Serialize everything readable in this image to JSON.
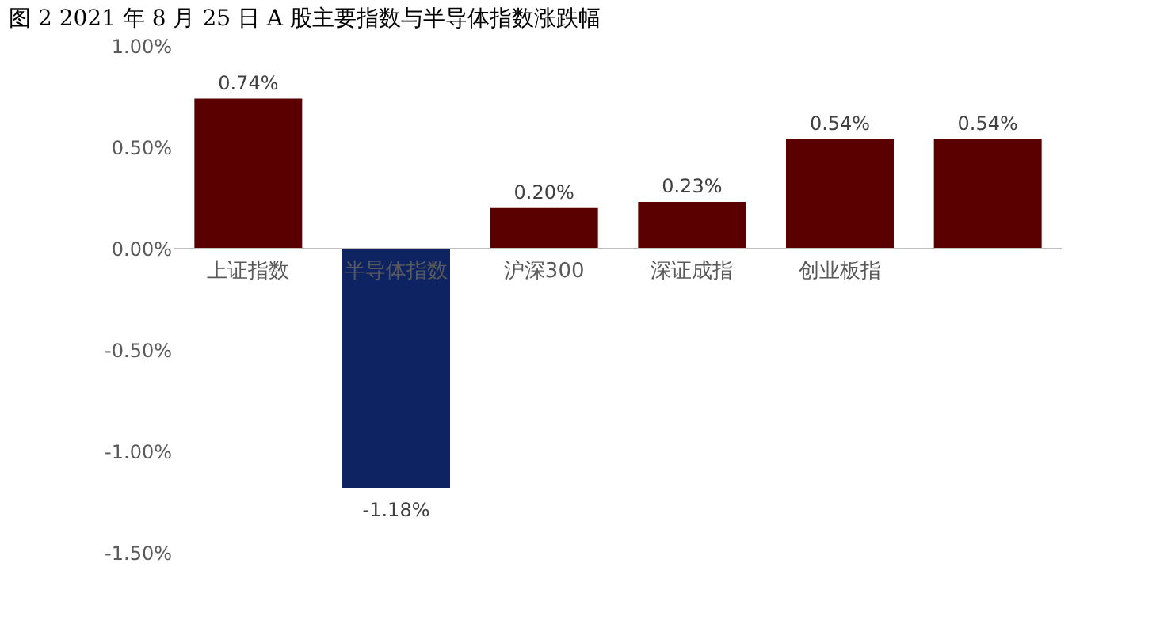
{
  "chart_data": {
    "type": "bar",
    "title": "图 2 2021 年 8 月 25 日 A 股主要指数与半导体指数涨跌幅",
    "categories": [
      "上证指数",
      "半导体指数",
      "沪深300",
      "深证成指",
      "创业板指",
      null
    ],
    "values": [
      0.74,
      -1.18,
      0.2,
      0.23,
      0.54,
      0.54
    ],
    "colors": [
      "#5a0000",
      "#0e2462",
      "#5a0000",
      "#5a0000",
      "#5a0000",
      "#5a0000"
    ],
    "value_labels": [
      "0.74%",
      "-1.18%",
      "0.20%",
      "0.23%",
      "0.54%",
      "0.54%"
    ],
    "ylim": [
      -1.5,
      1.0
    ],
    "yticks": [
      {
        "value": -1.5,
        "label": "-1.50%"
      },
      {
        "value": -1.0,
        "label": "-1.00%"
      },
      {
        "value": -0.5,
        "label": "-0.50%"
      },
      {
        "value": 0,
        "label": "0.00%"
      },
      {
        "value": 0.5,
        "label": "0.50%"
      },
      {
        "value": 1.0,
        "label": "1.00%"
      }
    ],
    "grid": false
  }
}
